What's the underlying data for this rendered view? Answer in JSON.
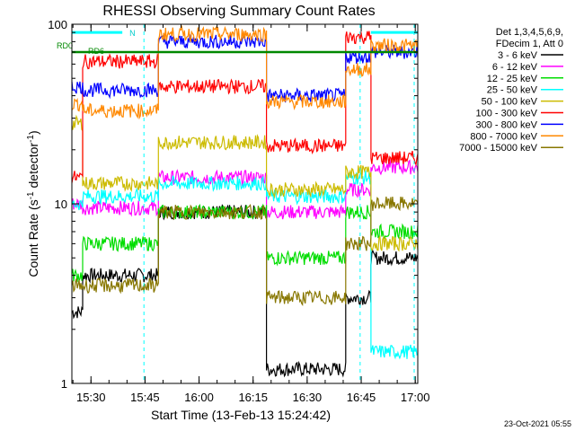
{
  "page": {
    "title": "RHESSI Observing Summary Count Rates",
    "timestamp": "23-Oct-2021 05:55"
  },
  "chart_data": {
    "type": "line",
    "title": "RHESSI Observing Summary Count Rates",
    "xlabel": "Start Time (13-Feb-13 15:24:42)",
    "ylabel_parts": [
      "Count Rate (s",
      "-1",
      " detector",
      "-1",
      ")"
    ],
    "yscale": "log",
    "ylim": [
      1,
      100
    ],
    "xlim_minutes": [
      0,
      96
    ],
    "x_start": "15:24:42",
    "x_tick_labels": [
      "15:30",
      "15:45",
      "16:00",
      "16:15",
      "16:30",
      "16:45",
      "17:00"
    ],
    "x_tick_minutes": [
      5.3,
      20.3,
      35.3,
      50.3,
      65.3,
      80.3,
      95.3
    ],
    "y_tick_labels": [
      "1",
      "10",
      "100"
    ],
    "y_tick_values": [
      1,
      10,
      100
    ],
    "grid": false,
    "legend_position": "right",
    "legend_header": [
      "Det 1,3,4,5,6,9,",
      "FDecim 1, Att 0"
    ],
    "annotations": {
      "rd0": "RD0",
      "rd6": "RD6",
      "n": "N"
    },
    "segments_minutes": [
      [
        0,
        3
      ],
      [
        3,
        24
      ],
      [
        24,
        54
      ],
      [
        54,
        76
      ],
      [
        76,
        83
      ],
      [
        83,
        96
      ]
    ],
    "series": [
      {
        "name": "3 - 6 keV",
        "color": "#000000",
        "values": [
          2.5,
          4.0,
          9.0,
          1.2,
          3.0,
          5.0
        ]
      },
      {
        "name": "6 - 12 keV",
        "color": "#ff00ff",
        "values": [
          10.0,
          9.5,
          14.0,
          9.0,
          12.0,
          16.0
        ]
      },
      {
        "name": "12 - 25 keV",
        "color": "#00dd00",
        "values": [
          4.0,
          6.0,
          9.0,
          5.0,
          9.0,
          7.0
        ]
      },
      {
        "name": "25 - 50 keV",
        "color": "#00ffff",
        "values": [
          10.0,
          11.0,
          13.0,
          11.0,
          14.0,
          1.5
        ]
      },
      {
        "name": "50 - 100 keV",
        "color": "#ccbb00",
        "values": [
          28.0,
          13.0,
          22.0,
          12.0,
          15.0,
          6.0
        ]
      },
      {
        "name": "100 - 300 keV",
        "color": "#ff0000",
        "values": [
          14.0,
          62.0,
          45.0,
          21.0,
          85.0,
          18.0
        ]
      },
      {
        "name": "300 - 800 keV",
        "color": "#0000ff",
        "values": [
          45.0,
          43.0,
          80.0,
          40.0,
          66.0,
          70.0
        ]
      },
      {
        "name": "800 - 7000 keV",
        "color": "#ff8800",
        "values": [
          36.0,
          33.0,
          88.0,
          37.0,
          56.0,
          76.0
        ]
      },
      {
        "name": "7000 - 15000 keV",
        "color": "#887700",
        "values": [
          3.5,
          3.5,
          9.0,
          3.0,
          6.0,
          10.0
        ]
      }
    ]
  }
}
